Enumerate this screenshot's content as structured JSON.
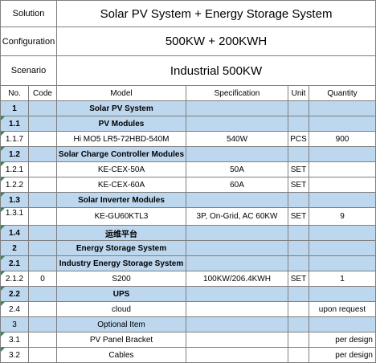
{
  "summary": {
    "solution_label": "Solution",
    "solution_value": "Solar PV System + Energy Storage System",
    "configuration_label": "Configuration",
    "configuration_value": "500KW + 200KWH",
    "scenario_label": "Scenario",
    "scenario_value": "Industrial 500KW"
  },
  "columns": [
    "No.",
    "Code",
    "Model",
    "Specification",
    "Unit",
    "Quantity"
  ],
  "rows": [
    {
      "no": "1",
      "code": "",
      "model": "Solar PV System",
      "spec": "",
      "unit": "",
      "qty": "",
      "style": "section"
    },
    {
      "no": "1.1",
      "code": "",
      "model": "PV Modules",
      "spec": "",
      "unit": "",
      "qty": "",
      "style": "section"
    },
    {
      "no": "1.1.7",
      "code": "",
      "model": "Hi MO5 LR5-72HBD-540M",
      "spec": "540W",
      "unit": "PCS",
      "qty": "900",
      "style": "item"
    },
    {
      "no": "1.2",
      "code": "",
      "model": "Solar Charge Controller Modules",
      "spec": "",
      "unit": "",
      "qty": "",
      "style": "section"
    },
    {
      "no": "1.2.1",
      "code": "",
      "model": "KE-CEX-50A",
      "spec": "50A",
      "unit": "SET",
      "qty": "",
      "style": "item"
    },
    {
      "no": "1.2.2",
      "code": "",
      "model": "KE-CEX-60A",
      "spec": "60A",
      "unit": "SET",
      "qty": "",
      "style": "item"
    },
    {
      "no": "1.3",
      "code": "",
      "model": "Solar Inverter Modules",
      "spec": "",
      "unit": "",
      "qty": "",
      "style": "section"
    },
    {
      "no": "1.3.1",
      "code": "",
      "model": "KE-GU60KTL3",
      "spec": "3P, On-Grid, AC 60KW",
      "unit": "SET",
      "qty": "9",
      "style": "item-tall"
    },
    {
      "no": "1.4",
      "code": "",
      "model": "运维平台",
      "spec": "",
      "unit": "",
      "qty": "",
      "style": "section"
    },
    {
      "no": "2",
      "code": "",
      "model": "Energy Storage System",
      "spec": "",
      "unit": "",
      "qty": "",
      "style": "section"
    },
    {
      "no": "2.1",
      "code": "",
      "model": "Industry Energy Storage System",
      "spec": "",
      "unit": "",
      "qty": "",
      "style": "section"
    },
    {
      "no": "2.1.2",
      "code": "0",
      "model": "S200",
      "spec": "100KW/206.4KWH",
      "unit": "SET",
      "qty": "1",
      "style": "item"
    },
    {
      "no": "2.2",
      "code": "",
      "model": "UPS",
      "spec": "",
      "unit": "",
      "qty": "",
      "style": "section"
    },
    {
      "no": "2.4",
      "code": "",
      "model": "cloud",
      "spec": "",
      "unit": "",
      "qty": "upon request",
      "style": "item"
    },
    {
      "no": "3",
      "code": "",
      "model": "Optional Item",
      "spec": "",
      "unit": "",
      "qty": "",
      "style": "section-plain"
    },
    {
      "no": "3.1",
      "code": "",
      "model": "PV Panel Bracket",
      "spec": "",
      "unit": "",
      "qty": "per design",
      "style": "item"
    },
    {
      "no": "3.2",
      "code": "",
      "model": "Cables",
      "spec": "",
      "unit": "",
      "qty": "per design",
      "style": "item"
    }
  ],
  "colors": {
    "section_fill": "#bdd7ee",
    "grid_line": "#7f7f7f",
    "marker": "#2e8b57"
  }
}
